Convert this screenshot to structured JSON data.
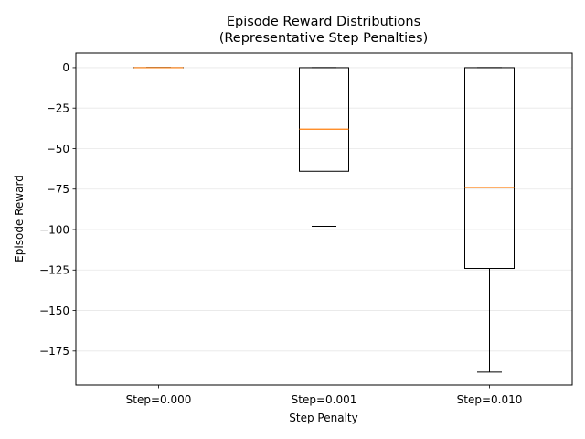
{
  "chart_data": {
    "type": "boxplot",
    "title_line1": "Episode Reward Distributions",
    "title_line2": "(Representative Step Penalties)",
    "xlabel": "Step Penalty",
    "ylabel": "Episode Reward",
    "ylim": [
      -196,
      9
    ],
    "yticks": [
      0,
      -25,
      -50,
      -75,
      -100,
      -125,
      -150,
      -175
    ],
    "ytick_labels": [
      "0",
      "−25",
      "−50",
      "−75",
      "−100",
      "−125",
      "−150",
      "−175"
    ],
    "grid": "y-only",
    "median_color": "#ff7f0e",
    "categories": [
      "Step=0.000",
      "Step=0.001",
      "Step=0.010"
    ],
    "boxes": [
      {
        "whisker_low": 0,
        "q1": 0,
        "median": 0,
        "q3": 0,
        "whisker_high": 0
      },
      {
        "whisker_low": -98,
        "q1": -64,
        "median": -38,
        "q3": 0,
        "whisker_high": 0
      },
      {
        "whisker_low": -188,
        "q1": -124,
        "median": -74,
        "q3": 0,
        "whisker_high": 0
      }
    ]
  }
}
